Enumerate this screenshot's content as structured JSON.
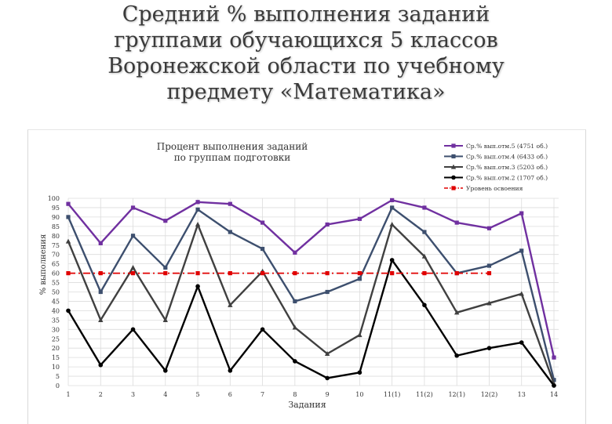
{
  "slide": {
    "title_lines": [
      "Средний % выполнения заданий",
      "группами обучающихся 5 классов",
      "Воронежской области по учебному",
      "предмету «Математика»"
    ]
  },
  "chart_data": {
    "type": "line",
    "title": "Процент выполнения заданий\nпо группам подготовки",
    "xlabel": "Задания",
    "ylabel": "% выполнения",
    "ylim": [
      0,
      100
    ],
    "ytick_step": 5,
    "grid": true,
    "legend_position": "top-right",
    "categories": [
      "1",
      "2",
      "3",
      "4",
      "5",
      "6",
      "7",
      "8",
      "9",
      "10",
      "11(1)",
      "11(2)",
      "12(1)",
      "12(2)",
      "13",
      "14"
    ],
    "series": [
      {
        "name": "Ср.% вып.отм.5 (4751 об.)",
        "color": "#7030a0",
        "marker": "square",
        "dash": "solid",
        "values": [
          97,
          76,
          95,
          88,
          98,
          97,
          87,
          71,
          86,
          89,
          99,
          95,
          87,
          84,
          92,
          15
        ]
      },
      {
        "name": "Ср.% вып.отм.4 (6433 об.)",
        "color": "#3d4f6e",
        "marker": "square",
        "dash": "solid",
        "values": [
          90,
          50,
          80,
          63,
          94,
          82,
          73,
          45,
          50,
          57,
          95,
          82,
          60,
          64,
          72,
          3
        ]
      },
      {
        "name": "Ср.% вып.отм.3 (5203 об.)",
        "color": "#404040",
        "marker": "triangle",
        "dash": "solid",
        "values": [
          77,
          35,
          63,
          35,
          86,
          43,
          61,
          31,
          17,
          27,
          86,
          69,
          39,
          44,
          49,
          1
        ]
      },
      {
        "name": "Ср.% вып.отм.2 (1707 об.)",
        "color": "#000000",
        "marker": "circle",
        "dash": "solid",
        "values": [
          40,
          11,
          30,
          8,
          53,
          8,
          30,
          13,
          4,
          7,
          67,
          43,
          16,
          20,
          23,
          0
        ]
      },
      {
        "name": "Уровень освоения",
        "color": "#e00000",
        "marker": "square",
        "dash": "dashdot",
        "values": [
          60,
          60,
          60,
          60,
          60,
          60,
          60,
          60,
          60,
          60,
          60,
          60,
          60,
          60,
          null,
          null
        ]
      }
    ]
  }
}
